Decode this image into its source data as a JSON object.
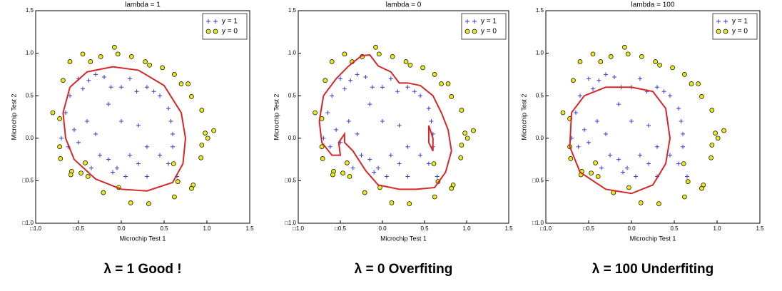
{
  "chart_data": [
    {
      "type": "scatter",
      "title": "lambda = 1",
      "xlabel": "Microchip Test 1",
      "ylabel": "Microchip Test 2",
      "caption": "λ  =  1 Good !",
      "xlim": [
        -1.0,
        1.5
      ],
      "ylim": [
        -1.0,
        1.5
      ],
      "xticks": [
        {
          "value": -1.0,
          "label": "□1.0"
        },
        {
          "value": -0.5,
          "label": "□0.5"
        },
        {
          "value": 0,
          "label": "0.0"
        },
        0.5,
        {
          "value": 1,
          "label": "1.0"
        },
        1.5
      ],
      "yticks": [
        {
          "value": -1.0,
          "label": "□1.0"
        },
        {
          "value": -0.5,
          "label": "□0.5"
        },
        {
          "value": 0,
          "label": "0.0"
        },
        0.5,
        {
          "value": 1,
          "label": "1.0"
        },
        1.5
      ],
      "legend": "upper right",
      "series": [
        {
          "name": "y = 1",
          "color": "#3b3bd6",
          "mark": "plus",
          "x": [
            -0.5,
            -0.45,
            -0.38,
            -0.3,
            -0.2,
            -0.12,
            0.0,
            0.1,
            0.18,
            0.3,
            0.38,
            0.45,
            -0.6,
            -0.55,
            -0.5,
            -0.4,
            -0.3,
            -0.25,
            -0.15,
            -0.05,
            0.1,
            0.2,
            0.3,
            0.45,
            0.55,
            0.6,
            0.6,
            0.58,
            0.55,
            -0.65,
            -0.62,
            -0.1,
            0.05,
            0.3,
            -0.35,
            0.65,
            -0.7,
            0.2,
            -0.15,
            0.0
          ],
          "values": [
            0.7,
            0.58,
            0.68,
            0.75,
            0.72,
            0.6,
            0.6,
            0.7,
            0.55,
            0.6,
            0.55,
            0.5,
            0.5,
            0.1,
            -0.05,
            0.2,
            0.05,
            -0.2,
            -0.25,
            -0.35,
            -0.2,
            -0.3,
            -0.1,
            -0.2,
            -0.3,
            -0.1,
            0.05,
            0.2,
            0.35,
            0.3,
            -0.1,
            -0.4,
            -0.45,
            -0.45,
            -0.35,
            -0.45,
            0.0,
            0.15,
            0.4,
            0.2
          ]
        },
        {
          "name": "y = 0",
          "color": "#e8e81a",
          "mark": "circle",
          "x": [
            -0.8,
            -0.72,
            -0.72,
            -0.58,
            -0.68,
            -0.6,
            -0.45,
            -0.36,
            -0.24,
            -0.08,
            -0.04,
            0.12,
            0.28,
            0.33,
            0.48,
            0.62,
            0.7,
            0.78,
            0.82,
            0.94,
            0.98,
            1.01,
            1.08,
            0.94,
            0.93,
            0.84,
            0.82,
            0.62,
            0.32,
            0.11,
            -0.21,
            -0.03,
            -0.39,
            -0.47,
            -0.42,
            -0.59,
            -0.71,
            0.61,
            0.66
          ],
          "values": [
            0.3,
            0.23,
            -0.1,
            -0.39,
            0.68,
            0.9,
            0.99,
            0.9,
            0.96,
            1.07,
            0.99,
            0.96,
            0.9,
            0.86,
            0.83,
            0.75,
            0.64,
            0.64,
            0.49,
            0.33,
            0.06,
            0.0,
            0.09,
            -0.08,
            -0.23,
            -0.55,
            -0.59,
            -0.69,
            -0.77,
            -0.76,
            -0.64,
            -0.58,
            -0.45,
            -0.41,
            -0.29,
            -0.43,
            -0.24,
            -0.3,
            -0.51
          ]
        },
        {
          "color": "#d62728",
          "mark": "line",
          "x": [
            -0.6,
            -0.4,
            -0.1,
            0.2,
            0.5,
            0.7,
            0.75,
            0.72,
            0.6,
            0.3,
            0.0,
            -0.3,
            -0.55,
            -0.65,
            -0.68,
            -0.6
          ],
          "values": [
            0.6,
            0.78,
            0.84,
            0.8,
            0.62,
            0.3,
            0.0,
            -0.3,
            -0.52,
            -0.62,
            -0.6,
            -0.48,
            -0.25,
            0.0,
            0.3,
            0.6
          ]
        }
      ]
    },
    {
      "type": "scatter",
      "title": "lambda = 0",
      "xlabel": "Microchip Test 1",
      "ylabel": "Microchip Test 2",
      "caption": "λ  =  0 Overfiting",
      "xlim": [
        -1.0,
        1.5
      ],
      "ylim": [
        -1.0,
        1.5
      ],
      "xticks": [
        {
          "value": -1.0,
          "label": "□1.0"
        },
        {
          "value": -0.5,
          "label": "□0.5"
        },
        {
          "value": 0,
          "label": "0.0"
        },
        0.5,
        {
          "value": 1,
          "label": "1.0"
        },
        1.5
      ],
      "yticks": [
        {
          "value": -1.0,
          "label": "□1.0"
        },
        {
          "value": -0.5,
          "label": "□0.5"
        },
        {
          "value": 0,
          "label": "0.0"
        },
        0.5,
        {
          "value": 1,
          "label": "1.0"
        },
        1.5
      ],
      "legend": "upper right",
      "series": [
        {
          "name": "y = 1",
          "color": "#3b3bd6",
          "mark": "plus",
          "x": [
            -0.5,
            -0.45,
            -0.38,
            -0.3,
            -0.2,
            -0.12,
            0.0,
            0.1,
            0.18,
            0.3,
            0.38,
            0.45,
            -0.6,
            -0.55,
            -0.5,
            -0.4,
            -0.3,
            -0.25,
            -0.15,
            -0.05,
            0.1,
            0.2,
            0.3,
            0.45,
            0.55,
            0.6,
            0.6,
            0.58,
            0.55,
            -0.65,
            -0.62,
            -0.1,
            0.05,
            0.3,
            -0.35,
            0.65,
            -0.7,
            0.2,
            -0.15,
            0.0
          ],
          "values": [
            0.7,
            0.58,
            0.68,
            0.75,
            0.72,
            0.6,
            0.6,
            0.7,
            0.55,
            0.6,
            0.55,
            0.5,
            0.5,
            0.1,
            -0.05,
            0.2,
            0.05,
            -0.2,
            -0.25,
            -0.35,
            -0.2,
            -0.3,
            -0.1,
            -0.2,
            -0.3,
            -0.1,
            0.05,
            0.2,
            0.35,
            0.3,
            -0.1,
            -0.4,
            -0.45,
            -0.45,
            -0.35,
            -0.45,
            0.0,
            0.15,
            0.4,
            0.2
          ]
        },
        {
          "name": "y = 0",
          "color": "#e8e81a",
          "mark": "circle",
          "x": [
            -0.8,
            -0.72,
            -0.72,
            -0.58,
            -0.68,
            -0.6,
            -0.45,
            -0.36,
            -0.24,
            -0.08,
            -0.04,
            0.12,
            0.28,
            0.33,
            0.48,
            0.62,
            0.7,
            0.78,
            0.82,
            0.94,
            0.98,
            1.01,
            1.08,
            0.94,
            0.93,
            0.84,
            0.82,
            0.62,
            0.32,
            0.11,
            -0.21,
            -0.03,
            -0.39,
            -0.47,
            -0.42,
            -0.59,
            -0.71,
            0.61,
            0.66
          ],
          "values": [
            0.3,
            0.23,
            -0.1,
            -0.39,
            0.68,
            0.9,
            0.99,
            0.9,
            0.96,
            1.07,
            0.99,
            0.96,
            0.9,
            0.86,
            0.83,
            0.75,
            0.64,
            0.64,
            0.49,
            0.33,
            0.06,
            0.0,
            0.09,
            -0.08,
            -0.23,
            -0.55,
            -0.59,
            -0.69,
            -0.77,
            -0.76,
            -0.64,
            -0.58,
            -0.45,
            -0.41,
            -0.29,
            -0.43,
            -0.24,
            -0.3,
            -0.51
          ]
        },
        {
          "color": "#d62728",
          "mark": "line",
          "x": [
            -0.7,
            -0.55,
            -0.4,
            -0.25,
            -0.15,
            -0.05,
            0.1,
            0.2,
            0.3,
            0.45,
            0.6,
            0.7,
            0.78,
            0.82,
            0.75,
            0.62,
            0.4,
            0.2,
            -0.05,
            -0.2,
            -0.35,
            -0.45,
            -0.45,
            -0.52,
            -0.5,
            -0.6,
            -0.72,
            -0.75,
            -0.7,
            null,
            0.55,
            0.6,
            0.6,
            0.55,
            0.55
          ],
          "values": [
            0.5,
            0.7,
            0.85,
            0.97,
            0.98,
            0.85,
            0.78,
            0.65,
            0.65,
            0.62,
            0.5,
            0.3,
            0.1,
            -0.15,
            -0.4,
            -0.58,
            -0.6,
            -0.6,
            -0.55,
            -0.38,
            -0.15,
            -0.05,
            0.05,
            -0.05,
            -0.2,
            -0.2,
            -0.05,
            0.2,
            0.5,
            null,
            0.15,
            0.0,
            -0.15,
            -0.05,
            0.15
          ]
        }
      ]
    },
    {
      "type": "scatter",
      "title": "lambda = 100",
      "xlabel": "Microchip Test 1",
      "ylabel": "Microchip Test 2",
      "caption": "λ = 100 Underfiting",
      "xlim": [
        -1.0,
        1.5
      ],
      "ylim": [
        -1.0,
        1.5
      ],
      "xticks": [
        {
          "value": -1.0,
          "label": "□1.0"
        },
        {
          "value": -0.5,
          "label": "□0.5"
        },
        {
          "value": 0,
          "label": "0.0"
        },
        0.5,
        {
          "value": 1,
          "label": "1.0"
        },
        1.5
      ],
      "yticks": [
        {
          "value": -1.0,
          "label": "□1.0"
        },
        {
          "value": -0.5,
          "label": "□0.5"
        },
        {
          "value": 0,
          "label": "0.0"
        },
        0.5,
        {
          "value": 1,
          "label": "1.0"
        },
        1.5
      ],
      "legend": "upper right",
      "series": [
        {
          "name": "y = 1",
          "color": "#3b3bd6",
          "mark": "plus",
          "x": [
            -0.5,
            -0.45,
            -0.38,
            -0.3,
            -0.2,
            -0.12,
            0.0,
            0.1,
            0.18,
            0.3,
            0.38,
            0.45,
            -0.6,
            -0.55,
            -0.5,
            -0.4,
            -0.3,
            -0.25,
            -0.15,
            -0.05,
            0.1,
            0.2,
            0.3,
            0.45,
            0.55,
            0.6,
            0.6,
            0.58,
            0.55,
            -0.65,
            -0.62,
            -0.1,
            0.05,
            0.3,
            -0.35,
            0.65,
            -0.7,
            0.2,
            -0.15,
            0.0
          ],
          "values": [
            0.7,
            0.58,
            0.68,
            0.75,
            0.72,
            0.6,
            0.6,
            0.7,
            0.55,
            0.6,
            0.55,
            0.5,
            0.5,
            0.1,
            -0.05,
            0.2,
            0.05,
            -0.2,
            -0.25,
            -0.35,
            -0.2,
            -0.3,
            -0.1,
            -0.2,
            -0.3,
            -0.1,
            0.05,
            0.2,
            0.35,
            0.3,
            -0.1,
            -0.4,
            -0.45,
            -0.45,
            -0.35,
            -0.45,
            0.0,
            0.15,
            0.4,
            0.2
          ]
        },
        {
          "name": "y = 0",
          "color": "#e8e81a",
          "mark": "circle",
          "x": [
            -0.8,
            -0.72,
            -0.72,
            -0.58,
            -0.68,
            -0.6,
            -0.45,
            -0.36,
            -0.24,
            -0.08,
            -0.04,
            0.12,
            0.28,
            0.33,
            0.48,
            0.62,
            0.7,
            0.78,
            0.82,
            0.94,
            0.98,
            1.01,
            1.08,
            0.94,
            0.93,
            0.84,
            0.82,
            0.62,
            0.32,
            0.11,
            -0.21,
            -0.03,
            -0.39,
            -0.47,
            -0.42,
            -0.59,
            -0.71,
            0.61,
            0.66
          ],
          "values": [
            0.3,
            0.23,
            -0.1,
            -0.39,
            0.68,
            0.9,
            0.99,
            0.9,
            0.96,
            1.07,
            0.99,
            0.96,
            0.9,
            0.86,
            0.83,
            0.75,
            0.64,
            0.64,
            0.49,
            0.33,
            0.06,
            0.0,
            0.09,
            -0.08,
            -0.23,
            -0.55,
            -0.59,
            -0.69,
            -0.77,
            -0.76,
            -0.64,
            -0.58,
            -0.45,
            -0.41,
            -0.29,
            -0.43,
            -0.24,
            -0.3,
            -0.51
          ]
        },
        {
          "color": "#d62728",
          "mark": "line",
          "x": [
            -0.7,
            -0.55,
            -0.3,
            0.0,
            0.25,
            0.4,
            0.45,
            0.4,
            0.25,
            0.0,
            -0.3,
            -0.6,
            -0.72,
            -0.7
          ],
          "values": [
            0.3,
            0.5,
            0.6,
            0.6,
            0.55,
            0.35,
            0.0,
            -0.3,
            -0.55,
            -0.65,
            -0.6,
            -0.4,
            -0.1,
            0.3
          ]
        }
      ]
    }
  ]
}
